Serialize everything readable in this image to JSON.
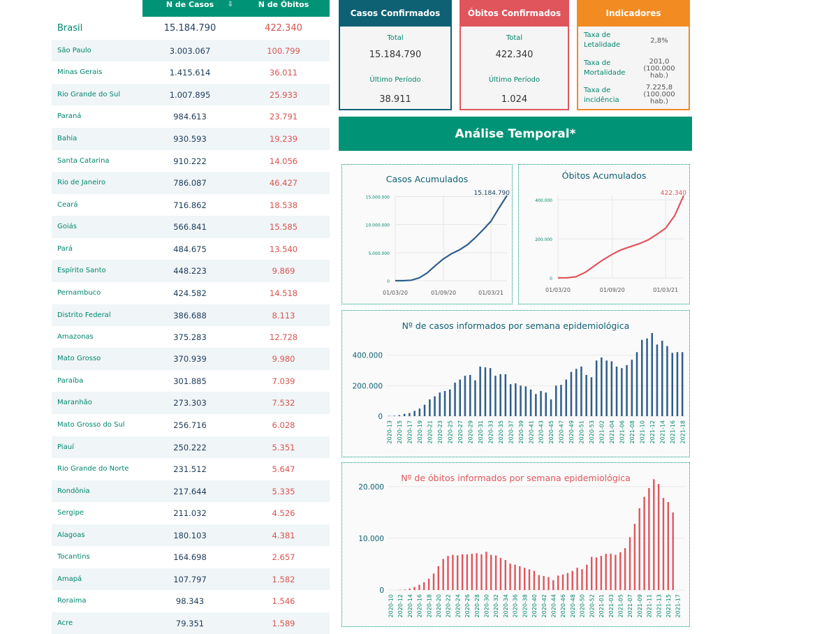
{
  "table": {
    "header_cases": "N de Casos",
    "header_deaths": "N de Óbitos",
    "rows": [
      {
        "name": "Brasil",
        "cases": "15.184.790",
        "deaths": "422.340"
      },
      {
        "name": "São Paulo",
        "cases": "3.003.067",
        "deaths": "100.799"
      },
      {
        "name": "Minas Gerais",
        "cases": "1.415.614",
        "deaths": "36.011"
      },
      {
        "name": "Rio Grande do Sul",
        "cases": "1.007.895",
        "deaths": "25.933"
      },
      {
        "name": "Paraná",
        "cases": "984.613",
        "deaths": "23.791"
      },
      {
        "name": "Bahia",
        "cases": "930.593",
        "deaths": "19.239"
      },
      {
        "name": "Santa Catarina",
        "cases": "910.222",
        "deaths": "14.056"
      },
      {
        "name": "Rio de Janeiro",
        "cases": "786.087",
        "deaths": "46.427"
      },
      {
        "name": "Ceará",
        "cases": "716.862",
        "deaths": "18.538"
      },
      {
        "name": "Goiás",
        "cases": "566.841",
        "deaths": "15.585"
      },
      {
        "name": "Pará",
        "cases": "484.675",
        "deaths": "13.540"
      },
      {
        "name": "Espírito Santo",
        "cases": "448.223",
        "deaths": "9.869"
      },
      {
        "name": "Pernambuco",
        "cases": "424.582",
        "deaths": "14.518"
      },
      {
        "name": "Distrito Federal",
        "cases": "386.688",
        "deaths": "8.113"
      },
      {
        "name": "Amazonas",
        "cases": "375.283",
        "deaths": "12.728"
      },
      {
        "name": "Mato Grosso",
        "cases": "370.939",
        "deaths": "9.980"
      },
      {
        "name": "Paraíba",
        "cases": "301.885",
        "deaths": "7.039"
      },
      {
        "name": "Maranhão",
        "cases": "273.303",
        "deaths": "7.532"
      },
      {
        "name": "Mato Grosso do Sul",
        "cases": "256.716",
        "deaths": "6.028"
      },
      {
        "name": "Piauí",
        "cases": "250.222",
        "deaths": "5.351"
      },
      {
        "name": "Rio Grande do Norte",
        "cases": "231.512",
        "deaths": "5.647"
      },
      {
        "name": "Rondônia",
        "cases": "217.644",
        "deaths": "5.335"
      },
      {
        "name": "Sergipe",
        "cases": "211.032",
        "deaths": "4.526"
      },
      {
        "name": "Alagoas",
        "cases": "180.103",
        "deaths": "4.381"
      },
      {
        "name": "Tocantins",
        "cases": "164.698",
        "deaths": "2.657"
      },
      {
        "name": "Amapá",
        "cases": "107.797",
        "deaths": "1.582"
      },
      {
        "name": "Roraima",
        "cases": "98.343",
        "deaths": "1.546"
      },
      {
        "name": "Acre",
        "cases": "79.351",
        "deaths": "1.589"
      }
    ]
  },
  "cards": {
    "cases": {
      "title": "Casos Confirmados",
      "total_label": "Total",
      "total": "15.184.790",
      "last_label": "Último Período",
      "last": "38.911"
    },
    "deaths": {
      "title": "Óbitos Confirmados",
      "total_label": "Total",
      "total": "422.340",
      "last_label": "Último Período",
      "last": "1.024"
    },
    "indicators": {
      "title": "Indicadores",
      "items": [
        {
          "label": "Taxa de Letalidade",
          "value": "2,8%"
        },
        {
          "label": "Taxa de Mortalidade",
          "value": "201,0 (100.000 hab.)"
        },
        {
          "label": "Taxa de incidência",
          "value": "7.225,8 (100.000 hab.)"
        }
      ]
    }
  },
  "banner": "Análise Temporal*",
  "colors": {
    "teal": "#009376",
    "blue": "#2f5d8c",
    "red": "#e0555c",
    "orange": "#f28b22",
    "darkteal": "#0e6073"
  },
  "chart_data": [
    {
      "type": "line",
      "title": "Casos Acumulados",
      "x": [
        "2020-03-01",
        "2020-04-01",
        "2020-05-01",
        "2020-06-01",
        "2020-07-01",
        "2020-08-01",
        "2020-09-01",
        "2020-10-01",
        "2020-11-01",
        "2020-12-01",
        "2021-01-01",
        "2021-02-01",
        "2021-03-01",
        "2021-04-01",
        "2021-05-01"
      ],
      "y": [
        0,
        5000,
        90000,
        510000,
        1400000,
        2700000,
        3900000,
        4800000,
        5500000,
        6400000,
        7700000,
        9200000,
        10600000,
        13000000,
        15184790
      ],
      "xticks": [
        "01/03/20",
        "01/09/20",
        "01/03/21"
      ],
      "yticks": [
        "0",
        "5.000.000",
        "10.000.000",
        "15.000.000"
      ],
      "ylim": [
        0,
        15184790
      ],
      "annotation": "15.184.790",
      "color": "#2f5d8c"
    },
    {
      "type": "line",
      "title": "Óbitos Acumulados",
      "x": [
        "2020-03-01",
        "2020-04-01",
        "2020-05-01",
        "2020-06-01",
        "2020-07-01",
        "2020-08-01",
        "2020-09-01",
        "2020-10-01",
        "2020-11-01",
        "2020-12-01",
        "2021-01-01",
        "2021-02-01",
        "2021-03-01",
        "2021-04-01",
        "2021-05-01"
      ],
      "y": [
        0,
        500,
        6000,
        28000,
        60000,
        93000,
        121000,
        144000,
        160000,
        175000,
        195000,
        225000,
        255000,
        320000,
        422340
      ],
      "xticks": [
        "01/03/20",
        "01/09/20",
        "01/03/21"
      ],
      "yticks": [
        "0",
        "200.000",
        "400.000"
      ],
      "ylim": [
        0,
        422340
      ],
      "annotation": "422.340",
      "color": "#e0555c"
    },
    {
      "type": "bar",
      "title": "Nº de casos informados por semana epidemiológica",
      "categories": [
        "2020-13",
        "2020-14",
        "2020-15",
        "2020-16",
        "2020-17",
        "2020-18",
        "2020-19",
        "2020-20",
        "2020-21",
        "2020-22",
        "2020-23",
        "2020-24",
        "2020-25",
        "2020-26",
        "2020-27",
        "2020-28",
        "2020-29",
        "2020-30",
        "2020-31",
        "2020-32",
        "2020-33",
        "2020-34",
        "2020-35",
        "2020-36",
        "2020-37",
        "2020-38",
        "2020-39",
        "2020-40",
        "2020-41",
        "2020-42",
        "2020-43",
        "2020-44",
        "2020-45",
        "2020-46",
        "2020-47",
        "2020-48",
        "2020-49",
        "2020-50",
        "2020-51",
        "2020-52",
        "2020-53",
        "2021-01",
        "2021-02",
        "2021-03",
        "2021-04",
        "2021-05",
        "2021-06",
        "2021-07",
        "2021-08",
        "2021-09",
        "2021-10",
        "2021-11",
        "2021-12",
        "2021-13",
        "2021-14",
        "2021-15",
        "2021-16",
        "2021-17",
        "2021-18"
      ],
      "values": [
        2000,
        3000,
        7000,
        15000,
        20000,
        35000,
        50000,
        75000,
        110000,
        130000,
        155000,
        165000,
        175000,
        220000,
        240000,
        265000,
        270000,
        235000,
        325000,
        320000,
        315000,
        265000,
        275000,
        275000,
        210000,
        215000,
        200000,
        195000,
        175000,
        145000,
        165000,
        155000,
        110000,
        200000,
        205000,
        240000,
        290000,
        310000,
        325000,
        270000,
        255000,
        365000,
        385000,
        365000,
        360000,
        325000,
        315000,
        335000,
        370000,
        420000,
        500000,
        510000,
        545000,
        470000,
        495000,
        460000,
        415000,
        420000,
        420000
      ],
      "xticks": [
        "2020-13",
        "2020-15",
        "2020-17",
        "2020-19",
        "2020-21",
        "2020-23",
        "2020-25",
        "2020-27",
        "2020-29",
        "2020-31",
        "2020-33",
        "2020-35",
        "2020-37",
        "2020-39",
        "2020-41",
        "2020-43",
        "2020-45",
        "2020-47",
        "2020-49",
        "2020-51",
        "2020-53",
        "2021-02",
        "2021-04",
        "2021-06",
        "2021-08",
        "2021-10",
        "2021-12",
        "2021-14",
        "2021-16",
        "2021-18"
      ],
      "yticks": [
        "0",
        "200.000",
        "400.000"
      ],
      "ylim": [
        0,
        600000
      ],
      "color": "#2f5d8c"
    },
    {
      "type": "bar",
      "title": "Nº de óbitos informados por semana epidemiológica",
      "categories": [
        "2020-10",
        "2020-11",
        "2020-12",
        "2020-13",
        "2020-14",
        "2020-15",
        "2020-16",
        "2020-17",
        "2020-18",
        "2020-19",
        "2020-20",
        "2020-21",
        "2020-22",
        "2020-23",
        "2020-24",
        "2020-25",
        "2020-26",
        "2020-27",
        "2020-28",
        "2020-29",
        "2020-30",
        "2020-31",
        "2020-32",
        "2020-33",
        "2020-34",
        "2020-35",
        "2020-36",
        "2020-37",
        "2020-38",
        "2020-39",
        "2020-40",
        "2020-41",
        "2020-42",
        "2020-43",
        "2020-44",
        "2020-45",
        "2020-46",
        "2020-47",
        "2020-48",
        "2020-49",
        "2020-50",
        "2020-51",
        "2020-52",
        "2020-53",
        "2021-01",
        "2021-02",
        "2021-03",
        "2021-04",
        "2021-05",
        "2021-06",
        "2021-07",
        "2021-08",
        "2021-09",
        "2021-10",
        "2021-11",
        "2021-12",
        "2021-13",
        "2021-14",
        "2021-15",
        "2021-16",
        "2021-17",
        "2021-18"
      ],
      "values": [
        0,
        0,
        50,
        100,
        300,
        600,
        1000,
        1500,
        2200,
        3200,
        4600,
        6000,
        6600,
        6800,
        6700,
        6900,
        6900,
        7000,
        7100,
        6900,
        7400,
        6800,
        6700,
        6200,
        5800,
        5100,
        4900,
        4600,
        4300,
        4000,
        3700,
        2900,
        2700,
        2500,
        1900,
        2800,
        3000,
        3300,
        3700,
        4300,
        4000,
        4900,
        6400,
        6300,
        6600,
        7000,
        7000,
        6800,
        7300,
        8100,
        10200,
        12800,
        15800,
        18000,
        19700,
        21400,
        20500,
        17800,
        17000,
        15000,
        0,
        0
      ],
      "xticks": [
        "2020-10",
        "2020-12",
        "2020-14",
        "2020-16",
        "2020-18",
        "2020-20",
        "2020-22",
        "2020-24",
        "2020-26",
        "2020-28",
        "2020-30",
        "2020-32",
        "2020-34",
        "2020-36",
        "2020-38",
        "2020-40",
        "2020-42",
        "2020-44",
        "2020-46",
        "2020-48",
        "2020-50",
        "2020-52",
        "2021-01",
        "2021-03",
        "2021-05",
        "2021-07",
        "2021-09",
        "2021-11",
        "2021-13",
        "2021-15",
        "2021-17"
      ],
      "yticks": [
        "0",
        "10.000",
        "20.000"
      ],
      "ylim": [
        0,
        22000
      ],
      "color": "#e0555c"
    }
  ]
}
